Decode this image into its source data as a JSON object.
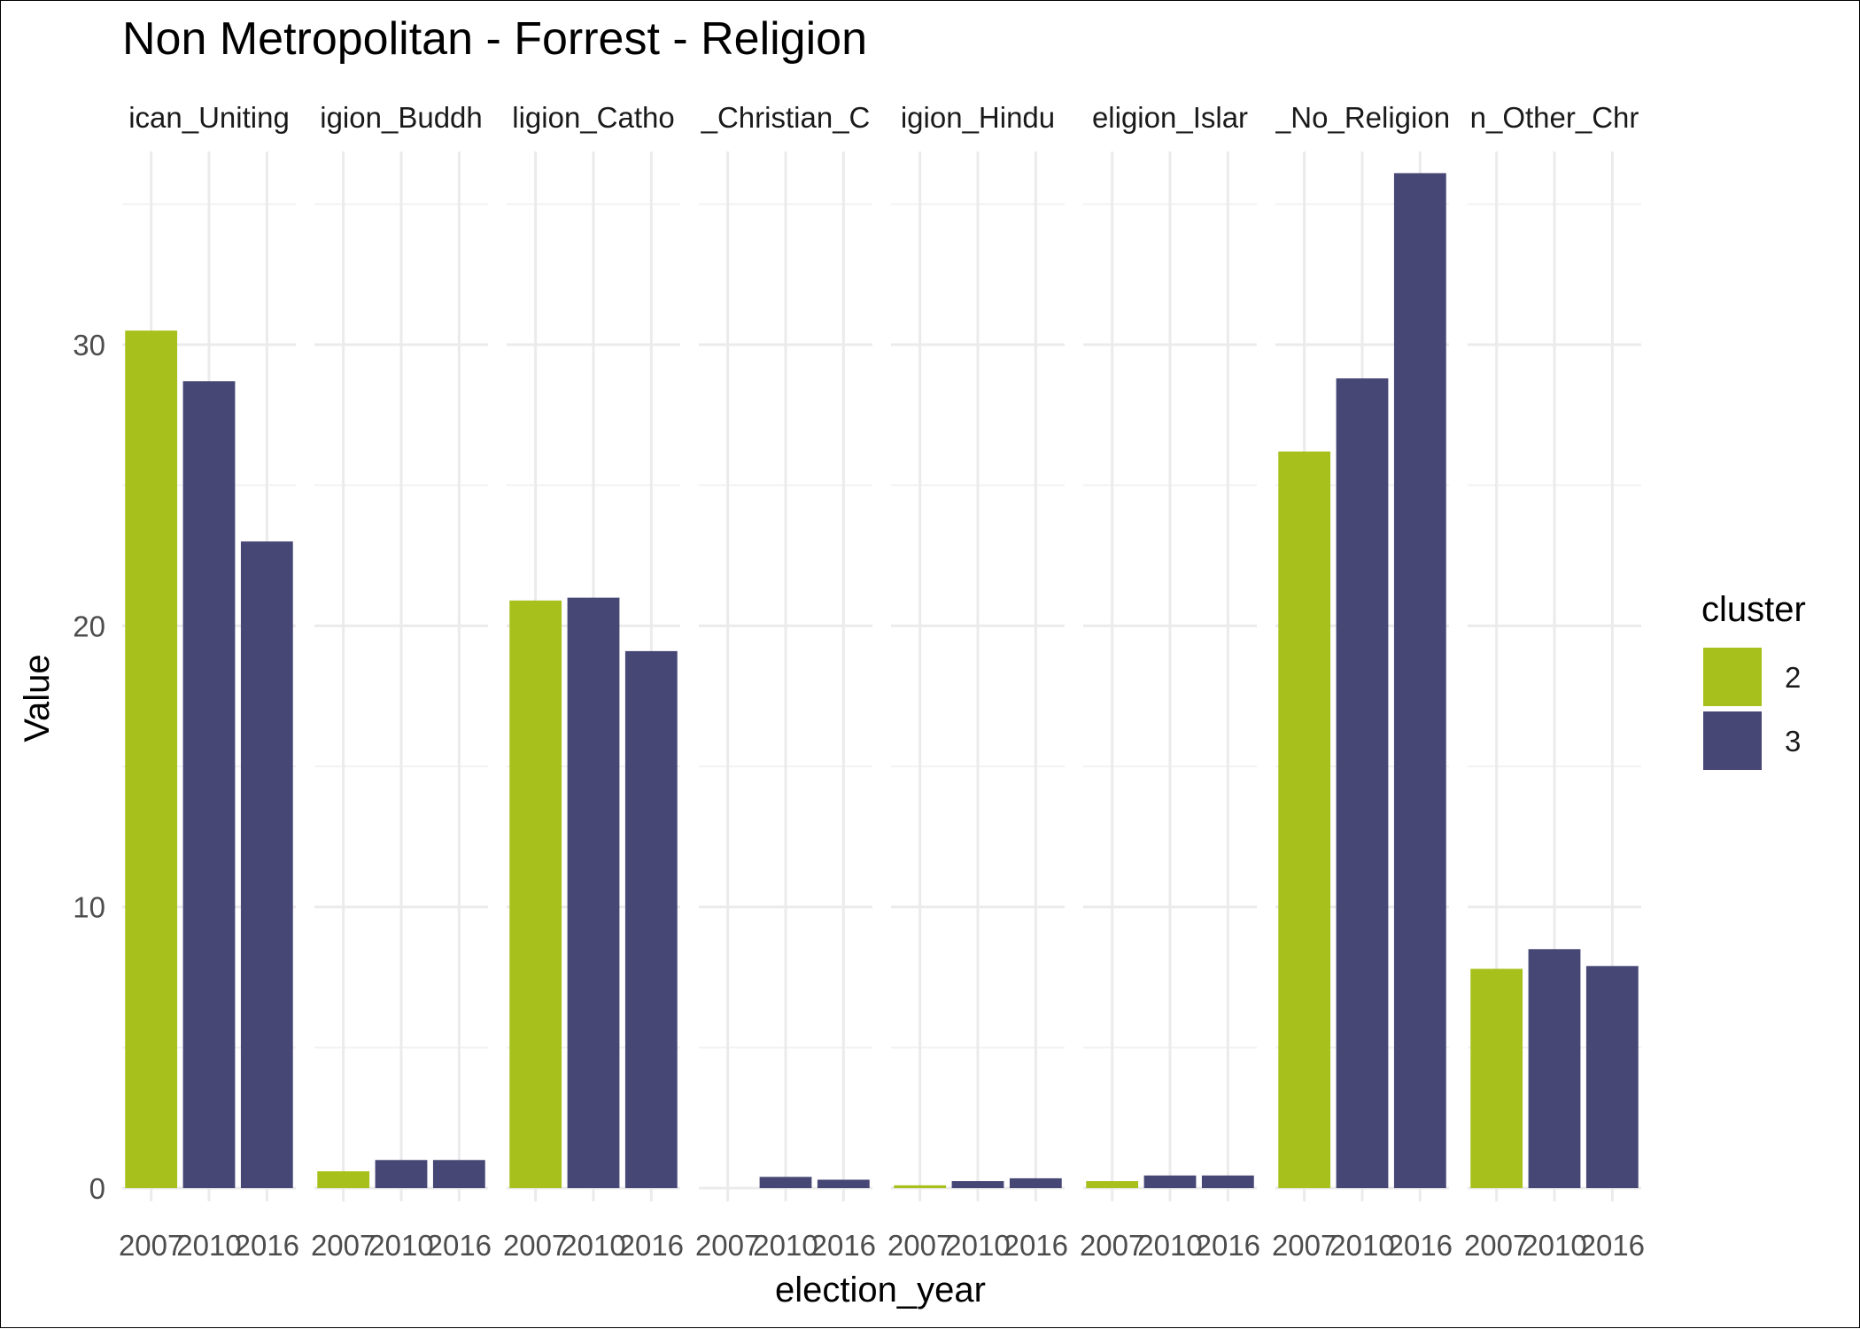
{
  "chart_data": {
    "type": "bar",
    "title": "Non Metropolitan - Forrest - Religion",
    "xlabel": "election_year",
    "ylabel": "Value",
    "ylim": [
      0,
      37.5
    ],
    "y_ticks": [
      0,
      10,
      20,
      30
    ],
    "grid": true,
    "legend": {
      "title": "cluster",
      "placement": "right",
      "entries": [
        {
          "label": "2",
          "color": "#a8c01b"
        },
        {
          "label": "3",
          "color": "#464775"
        }
      ]
    },
    "x_ticks": [
      "2007",
      "2010",
      "2016"
    ],
    "facets": [
      {
        "label": "ican_Uniting",
        "values": [
          30.5,
          28.7,
          23.0
        ],
        "clusters": [
          "2",
          "3",
          "3"
        ]
      },
      {
        "label": "igion_Buddh",
        "values": [
          0.6,
          1.0,
          1.0
        ],
        "clusters": [
          "2",
          "3",
          "3"
        ]
      },
      {
        "label": "ligion_Catho",
        "values": [
          20.9,
          21.0,
          19.1
        ],
        "clusters": [
          "2",
          "3",
          "3"
        ]
      },
      {
        "label": "_Christian_C",
        "values": [
          0.0,
          0.4,
          0.3
        ],
        "clusters": [
          "2",
          "3",
          "3"
        ]
      },
      {
        "label": "igion_Hindu",
        "values": [
          0.1,
          0.25,
          0.35
        ],
        "clusters": [
          "2",
          "3",
          "3"
        ]
      },
      {
        "label": "eligion_Islar",
        "values": [
          0.25,
          0.45,
          0.45
        ],
        "clusters": [
          "2",
          "3",
          "3"
        ]
      },
      {
        "label": "_No_Religion",
        "values": [
          26.2,
          28.8,
          36.1
        ],
        "clusters": [
          "2",
          "3",
          "3"
        ]
      },
      {
        "label": "n_Other_Chr",
        "values": [
          7.8,
          8.5,
          7.9
        ],
        "clusters": [
          "2",
          "3",
          "3"
        ]
      }
    ]
  }
}
